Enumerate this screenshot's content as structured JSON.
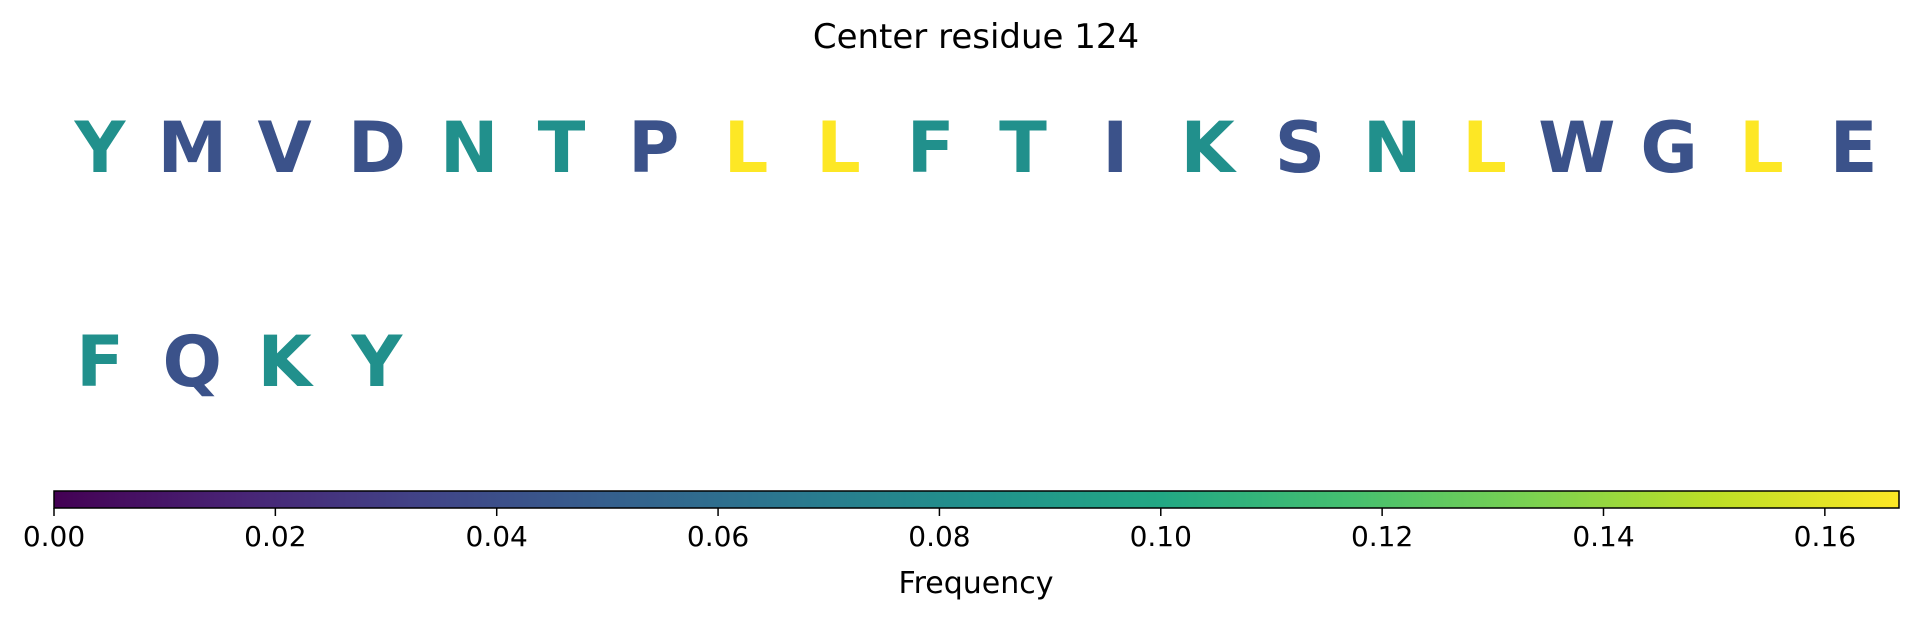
{
  "chart_data": {
    "type": "sequence_logo_colorbar",
    "title": "Center residue 124",
    "residues": [
      {
        "letter": "Y",
        "frequency": 0.083
      },
      {
        "letter": "M",
        "frequency": 0.042
      },
      {
        "letter": "V",
        "frequency": 0.042
      },
      {
        "letter": "D",
        "frequency": 0.042
      },
      {
        "letter": "N",
        "frequency": 0.083
      },
      {
        "letter": "T",
        "frequency": 0.083
      },
      {
        "letter": "P",
        "frequency": 0.042
      },
      {
        "letter": "L",
        "frequency": 0.167
      },
      {
        "letter": "L",
        "frequency": 0.167
      },
      {
        "letter": "F",
        "frequency": 0.083
      },
      {
        "letter": "T",
        "frequency": 0.083
      },
      {
        "letter": "I",
        "frequency": 0.042
      },
      {
        "letter": "K",
        "frequency": 0.083
      },
      {
        "letter": "S",
        "frequency": 0.042
      },
      {
        "letter": "N",
        "frequency": 0.083
      },
      {
        "letter": "L",
        "frequency": 0.167
      },
      {
        "letter": "W",
        "frequency": 0.042
      },
      {
        "letter": "G",
        "frequency": 0.042
      },
      {
        "letter": "L",
        "frequency": 0.167
      },
      {
        "letter": "E",
        "frequency": 0.042
      },
      {
        "letter": "F",
        "frequency": 0.083
      },
      {
        "letter": "Q",
        "frequency": 0.042
      },
      {
        "letter": "K",
        "frequency": 0.083
      },
      {
        "letter": "Y",
        "frequency": 0.083
      }
    ],
    "residues_per_row": 20,
    "colorbar": {
      "colormap": "viridis",
      "range": [
        0,
        0.1667
      ],
      "ticks": [
        0.0,
        0.02,
        0.04,
        0.06,
        0.08,
        0.1,
        0.12,
        0.14,
        0.16
      ],
      "tick_labels": [
        "0.00",
        "0.02",
        "0.04",
        "0.06",
        "0.08",
        "0.10",
        "0.12",
        "0.14",
        "0.16"
      ],
      "label": "Frequency",
      "orientation": "horizontal"
    }
  }
}
